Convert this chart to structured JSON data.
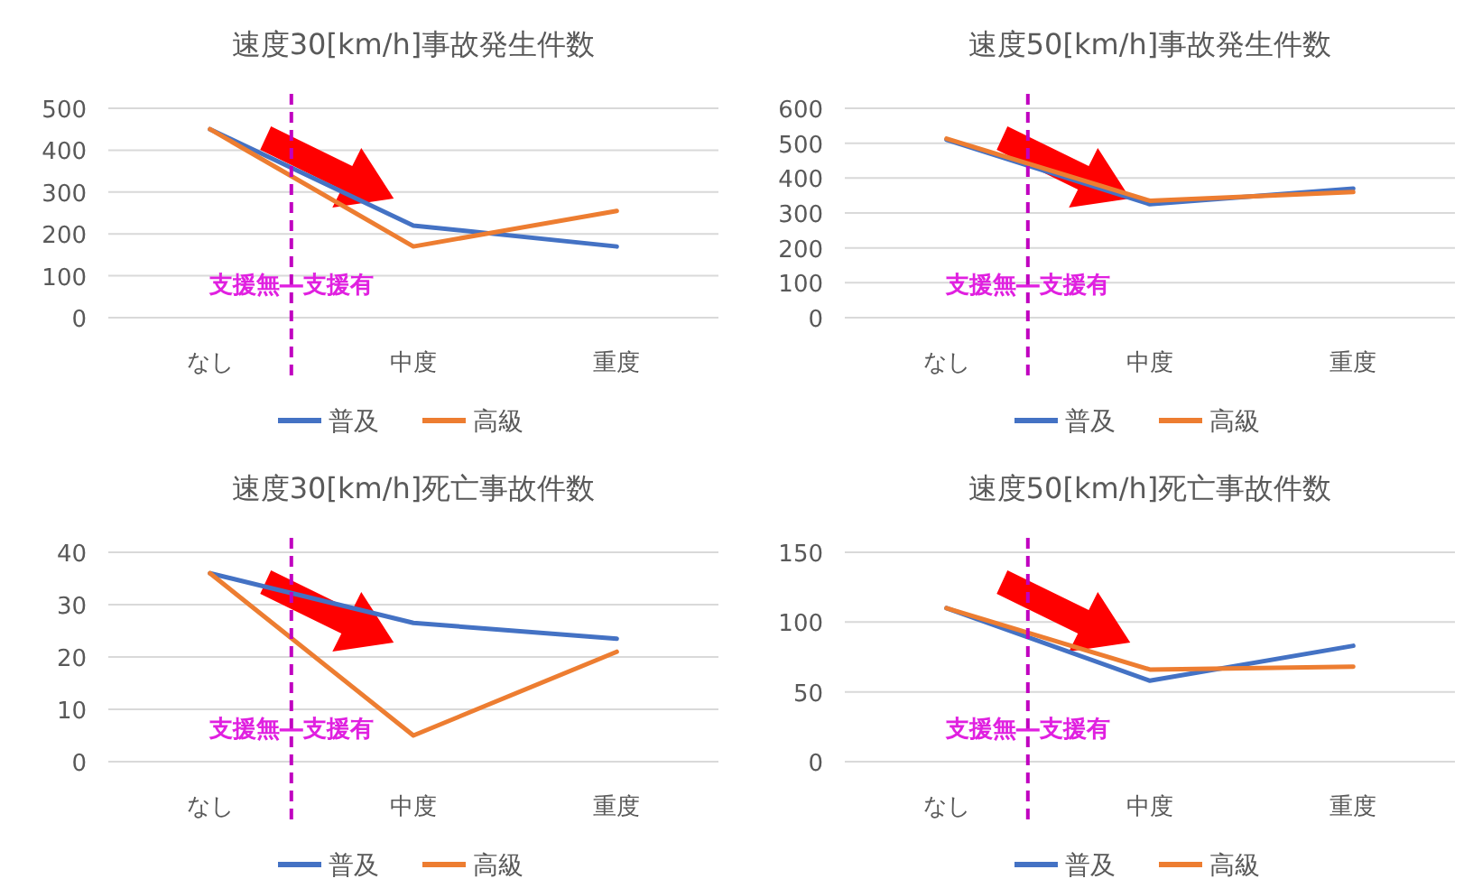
{
  "chart_data": [
    {
      "type": "line",
      "title": "速度30[km/h]事故発生件数",
      "categories": [
        "なし",
        "中度",
        "重度"
      ],
      "series": [
        {
          "name": "普及",
          "color": "#4472c4",
          "values": [
            450,
            220,
            170
          ]
        },
        {
          "name": "高級",
          "color": "#ed7d31",
          "values": [
            450,
            170,
            255
          ]
        }
      ],
      "ylim": [
        0,
        500
      ],
      "yticks": [
        0,
        100,
        200,
        300,
        400,
        500
      ],
      "grid": "y",
      "legend": "bottom",
      "annotations": [
        "支援無―支援有"
      ]
    },
    {
      "type": "line",
      "title": "速度50[km/h]事故発生件数",
      "categories": [
        "なし",
        "中度",
        "重度"
      ],
      "series": [
        {
          "name": "普及",
          "color": "#4472c4",
          "values": [
            510,
            325,
            370
          ]
        },
        {
          "name": "高級",
          "color": "#ed7d31",
          "values": [
            513,
            335,
            360
          ]
        }
      ],
      "ylim": [
        0,
        600
      ],
      "yticks": [
        0,
        100,
        200,
        300,
        400,
        500,
        600
      ],
      "grid": "y",
      "legend": "bottom",
      "annotations": [
        "支援無―支援有"
      ]
    },
    {
      "type": "line",
      "title": "速度30[km/h]死亡事故件数",
      "categories": [
        "なし",
        "中度",
        "重度"
      ],
      "series": [
        {
          "name": "普及",
          "color": "#4472c4",
          "values": [
            36,
            26.5,
            23.5
          ]
        },
        {
          "name": "高級",
          "color": "#ed7d31",
          "values": [
            36,
            5,
            21
          ]
        }
      ],
      "ylim": [
        0,
        40
      ],
      "yticks": [
        0,
        10,
        20,
        30,
        40
      ],
      "grid": "y",
      "legend": "bottom",
      "annotations": [
        "支援無―支援有"
      ]
    },
    {
      "type": "line",
      "title": "速度50[km/h]死亡事故件数",
      "categories": [
        "なし",
        "中度",
        "重度"
      ],
      "series": [
        {
          "name": "普及",
          "color": "#4472c4",
          "values": [
            110,
            58,
            83
          ]
        },
        {
          "name": "高級",
          "color": "#ed7d31",
          "values": [
            110,
            66,
            68
          ]
        }
      ],
      "ylim": [
        0,
        150
      ],
      "yticks": [
        0,
        50,
        100,
        150
      ],
      "grid": "y",
      "legend": "bottom",
      "annotations": [
        "支援無―支援有"
      ]
    }
  ]
}
